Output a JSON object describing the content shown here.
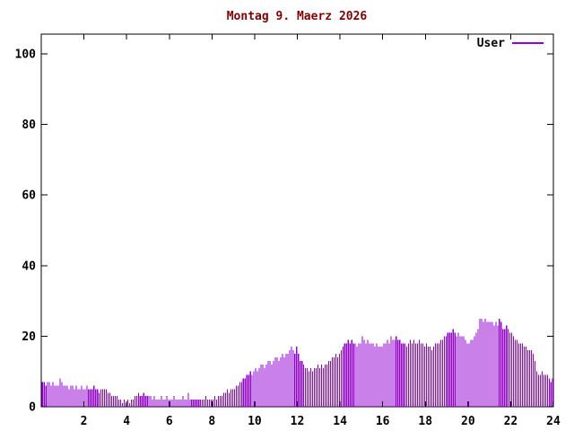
{
  "title": "Montag 9. Maerz 2026",
  "legend": {
    "label": "User",
    "position": "top-right"
  },
  "colors": {
    "bars": "#9400d3",
    "legend_line": "#9400d3",
    "axis": "#000000",
    "tick_labels": "#000000",
    "title": "#7f0000",
    "background": "#ffffff"
  },
  "chart_data": {
    "type": "bar",
    "title": "Montag 9. Maerz 2026",
    "xlabel": "",
    "ylabel": "",
    "x_unit": "hour of day",
    "sample_interval_minutes": 5,
    "xlim": [
      0,
      24
    ],
    "ylim": [
      0,
      100
    ],
    "x_ticks": [
      2,
      4,
      6,
      8,
      10,
      12,
      14,
      16,
      18,
      20,
      22,
      24
    ],
    "y_ticks": [
      0,
      20,
      40,
      60,
      80,
      100
    ],
    "grid": false,
    "legend_position": "top-right",
    "series": [
      {
        "name": "User",
        "color": "#9400d3",
        "values": [
          7,
          7,
          6,
          7,
          7,
          6,
          7,
          6,
          6,
          6,
          8,
          7,
          6,
          6,
          6,
          5,
          6,
          6,
          5,
          6,
          5,
          5,
          6,
          5,
          5,
          6,
          5,
          5,
          5,
          6,
          5,
          5,
          4,
          5,
          5,
          5,
          5,
          4,
          4,
          3,
          3,
          3,
          3,
          2,
          2,
          1,
          2,
          1,
          2,
          1,
          2,
          2,
          3,
          3,
          4,
          3,
          3,
          4,
          3,
          3,
          3,
          3,
          2,
          3,
          2,
          2,
          2,
          3,
          2,
          2,
          3,
          2,
          2,
          2,
          3,
          2,
          2,
          2,
          2,
          3,
          2,
          2,
          4,
          2,
          2,
          2,
          2,
          2,
          2,
          2,
          2,
          2,
          3,
          2,
          2,
          2,
          2,
          3,
          2,
          3,
          3,
          3,
          4,
          4,
          5,
          4,
          5,
          5,
          5,
          6,
          6,
          7,
          7,
          8,
          8,
          9,
          9,
          10,
          9,
          10,
          11,
          10,
          11,
          12,
          12,
          11,
          12,
          13,
          13,
          12,
          13,
          14,
          14,
          13,
          14,
          15,
          14,
          15,
          15,
          16,
          17,
          16,
          15,
          17,
          15,
          13,
          13,
          12,
          11,
          11,
          10,
          11,
          10,
          11,
          11,
          12,
          11,
          12,
          11,
          12,
          12,
          13,
          13,
          14,
          14,
          15,
          14,
          15,
          16,
          17,
          18,
          18,
          19,
          18,
          19,
          18,
          18,
          17,
          18,
          18,
          20,
          19,
          18,
          19,
          18,
          18,
          18,
          17,
          18,
          17,
          17,
          17,
          18,
          18,
          19,
          18,
          20,
          19,
          19,
          20,
          19,
          19,
          18,
          18,
          18,
          17,
          18,
          19,
          18,
          19,
          18,
          18,
          19,
          18,
          18,
          17,
          18,
          17,
          17,
          16,
          17,
          18,
          18,
          18,
          19,
          19,
          20,
          20,
          21,
          21,
          21,
          22,
          21,
          20,
          21,
          20,
          20,
          20,
          19,
          18,
          18,
          19,
          19,
          20,
          21,
          22,
          25,
          25,
          24,
          25,
          24,
          24,
          24,
          24,
          23,
          24,
          23,
          25,
          24,
          22,
          22,
          23,
          22,
          21,
          21,
          20,
          19,
          19,
          18,
          18,
          18,
          17,
          17,
          16,
          16,
          16,
          15,
          13,
          10,
          9,
          9,
          10,
          9,
          9,
          9,
          8,
          7,
          8
        ]
      }
    ]
  }
}
